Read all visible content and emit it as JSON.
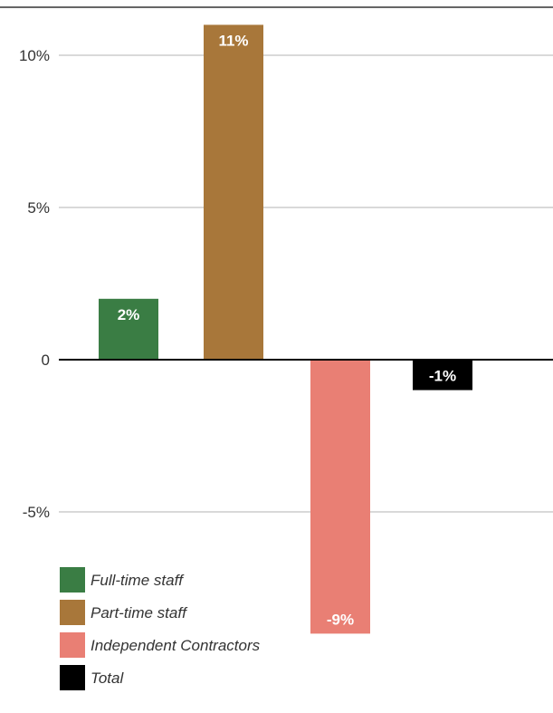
{
  "chart_data": {
    "type": "bar",
    "categories": [
      "Full-time staff",
      "Part-time staff",
      "Independent Contractors",
      "Total"
    ],
    "values": [
      2,
      11,
      -9,
      -1
    ],
    "value_labels": [
      "2%",
      "11%",
      "-9%",
      "-1%"
    ],
    "colors": [
      "#3a7d44",
      "#a8773a",
      "#e97f74",
      "#000000"
    ],
    "yticks": [
      {
        "value": 10,
        "label": "10%"
      },
      {
        "value": 5,
        "label": "5%"
      },
      {
        "value": 0,
        "label": "0"
      },
      {
        "value": -5,
        "label": "-5%"
      }
    ],
    "ylim": [
      -12,
      12
    ],
    "grid": true,
    "legend": {
      "placement": "bottom-left",
      "entries": [
        {
          "label": "Full-time staff",
          "color": "#3a7d44"
        },
        {
          "label": "Part-time staff",
          "color": "#a8773a"
        },
        {
          "label": "Independent Contractors",
          "color": "#e97f74"
        },
        {
          "label": "Total",
          "color": "#000000"
        }
      ]
    }
  }
}
